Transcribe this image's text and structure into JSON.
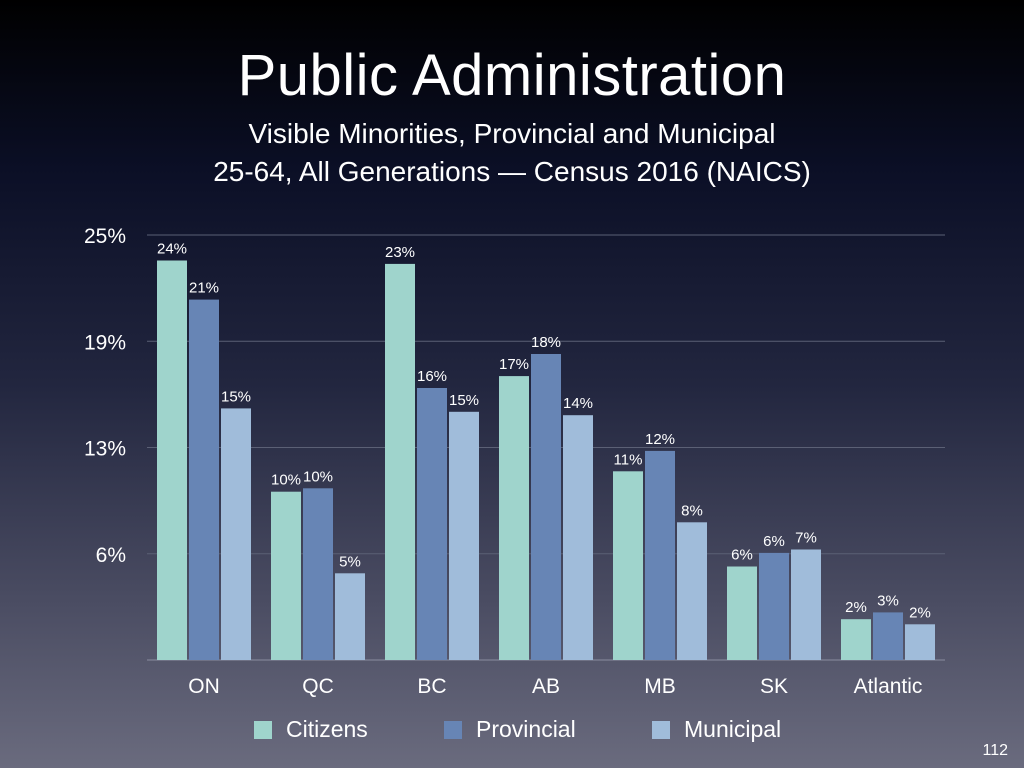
{
  "slide": {
    "title": "Public Administration",
    "subtitle_line1": "Visible Minorities, Provincial and Municipal",
    "subtitle_line2": "25-64, All Generations — Census 2016 (NAICS)",
    "page_number": "112"
  },
  "chart_data": {
    "type": "bar",
    "title": "Public Administration",
    "subtitle": "Visible Minorities, Provincial and Municipal 25-64, All Generations — Census 2016 (NAICS)",
    "categories": [
      "ON",
      "QC",
      "BC",
      "AB",
      "MB",
      "SK",
      "Atlantic"
    ],
    "series": [
      {
        "name": "Citizens",
        "color": "#9fd4cc",
        "values": [
          23.5,
          9.9,
          23.3,
          16.7,
          11.1,
          5.5,
          2.4
        ],
        "labels": [
          "24%",
          "10%",
          "23%",
          "17%",
          "11%",
          "6%",
          "2%"
        ]
      },
      {
        "name": "Provincial",
        "color": "#6785b5",
        "values": [
          21.2,
          10.1,
          16.0,
          18.0,
          12.3,
          6.3,
          2.8
        ],
        "labels": [
          "21%",
          "10%",
          "16%",
          "18%",
          "12%",
          "6%",
          "3%"
        ]
      },
      {
        "name": "Municipal",
        "color": "#a0bcda",
        "values": [
          14.8,
          5.1,
          14.6,
          14.4,
          8.1,
          6.5,
          2.1
        ],
        "labels": [
          "15%",
          "5%",
          "15%",
          "14%",
          "8%",
          "7%",
          "2%"
        ]
      }
    ],
    "yticks": [
      "25%",
      "19%",
      "13%",
      "6%"
    ],
    "ytick_values": [
      25,
      18.75,
      12.5,
      6.25
    ],
    "ylim": [
      0,
      25
    ],
    "xlabel": "",
    "ylabel": "",
    "grid": true,
    "legend_position": "bottom"
  }
}
